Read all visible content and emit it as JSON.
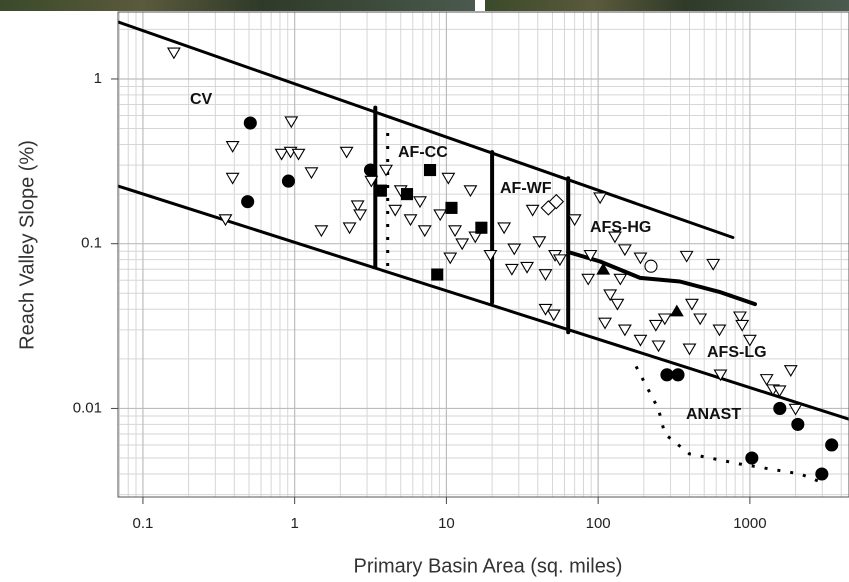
{
  "chart_data": {
    "type": "scatter",
    "x_label": "Primary Basin Area (sq. miles)",
    "y_label": "Reach Valley Slope (%)",
    "xscale": "log",
    "yscale": "log",
    "xlim": [
      0.0685,
      4500
    ],
    "ylim": [
      0.0029,
      2.55
    ],
    "xticks": [
      0.1,
      1,
      10,
      100,
      1000
    ],
    "yticks": [
      0.01,
      0.1,
      1
    ],
    "grid": true,
    "series": [
      {
        "marker": "triangle-down",
        "color": "#000",
        "filled": false,
        "x": [
          0.16,
          0.39,
          0.39,
          0.95,
          0.82,
          0.94,
          1.06,
          1.29,
          0.35,
          2.2,
          1.5,
          2.6,
          2.7,
          2.3,
          3.2,
          4,
          5,
          5.8,
          4.6,
          6.7,
          7.2,
          9.1,
          11.4,
          10.3,
          14.4,
          12.7,
          15.5,
          10.6,
          19.5,
          24,
          28,
          34,
          27,
          41,
          52,
          45,
          56,
          51,
          37,
          70,
          103,
          89,
          129,
          150,
          140,
          190,
          86,
          120,
          134,
          111,
          150,
          190,
          240,
          275,
          383,
          573,
          415,
          470,
          250,
          400,
          630,
          860,
          1000,
          890,
          640,
          1420,
          1290,
          1860,
          1570,
          2000,
          45
        ],
        "y": [
          1.44,
          0.39,
          0.25,
          0.55,
          0.35,
          0.36,
          0.35,
          0.27,
          0.14,
          0.36,
          0.12,
          0.17,
          0.15,
          0.125,
          0.24,
          0.28,
          0.21,
          0.14,
          0.16,
          0.18,
          0.12,
          0.15,
          0.12,
          0.25,
          0.21,
          0.1,
          0.11,
          0.082,
          0.085,
          0.125,
          0.093,
          0.072,
          0.07,
          0.103,
          0.085,
          0.065,
          0.08,
          0.037,
          0.16,
          0.14,
          0.19,
          0.085,
          0.11,
          0.092,
          0.061,
          0.082,
          0.061,
          0.049,
          0.043,
          0.033,
          0.03,
          0.026,
          0.032,
          0.035,
          0.084,
          0.075,
          0.043,
          0.035,
          0.024,
          0.023,
          0.03,
          0.036,
          0.026,
          0.032,
          0.016,
          0.013,
          0.015,
          0.017,
          0.0128,
          0.0099,
          0.04
        ]
      },
      {
        "marker": "circle",
        "color": "#000",
        "filled": true,
        "x": [
          0.51,
          0.91,
          0.49,
          3.16,
          284,
          336,
          1575,
          2070,
          1030,
          2980,
          3460
        ],
        "y": [
          0.54,
          0.24,
          0.18,
          0.28,
          0.016,
          0.016,
          0.01,
          0.008,
          0.005,
          0.004,
          0.006
        ]
      },
      {
        "marker": "square",
        "color": "#000",
        "filled": true,
        "x": [
          3.7,
          7.8,
          10.8,
          17,
          8.7,
          5.5
        ],
        "y": [
          0.21,
          0.28,
          0.165,
          0.125,
          0.065,
          0.2
        ]
      },
      {
        "marker": "diamond",
        "color": "#000",
        "filled": false,
        "x": [
          47,
          53
        ],
        "y": [
          0.165,
          0.18
        ]
      },
      {
        "marker": "circle",
        "color": "#000",
        "filled": false,
        "x": [
          223
        ],
        "y": [
          0.073
        ]
      },
      {
        "marker": "triangle-up",
        "color": "#000",
        "filled": true,
        "x": [
          108,
          330
        ],
        "y": [
          0.07,
          0.039
        ]
      }
    ],
    "lines": [
      {
        "style": "solid",
        "width": 3,
        "x": [
          0.0685,
          773
        ],
        "y": [
          2.22,
          0.109
        ]
      },
      {
        "style": "solid",
        "width": 3,
        "x": [
          0.0685,
          4500
        ],
        "y": [
          0.224,
          0.0086
        ]
      },
      {
        "style": "solid",
        "width": 4,
        "x": [
          3.4,
          3.4
        ],
        "y": [
          0.67,
          0.072
        ]
      },
      {
        "style": "solid",
        "width": 4,
        "x": [
          20,
          20
        ],
        "y": [
          0.36,
          0.044
        ]
      },
      {
        "style": "solid",
        "width": 4,
        "x": [
          63.5,
          63.5
        ],
        "y": [
          0.25,
          0.029
        ]
      },
      {
        "style": "solid",
        "width": 4,
        "x": [
          63.5,
          103,
          189,
          345,
          630,
          1080
        ],
        "y": [
          0.089,
          0.078,
          0.062,
          0.059,
          0.051,
          0.043
        ]
      },
      {
        "style": "dotted",
        "width": 3,
        "x": [
          4.1,
          4.1
        ],
        "y": [
          0.47,
          0.068
        ]
      },
      {
        "style": "dotted",
        "width": 3,
        "x": [
          178,
          250,
          275,
          400,
          860,
          2150,
          3100
        ],
        "y": [
          0.018,
          0.0099,
          0.007,
          0.0053,
          0.0046,
          0.004,
          0.0035
        ]
      }
    ],
    "annotations": [
      "CV",
      "AF-CC",
      "AF-WF",
      "AFS-HG",
      "AFS-LG",
      "ANAST"
    ]
  }
}
